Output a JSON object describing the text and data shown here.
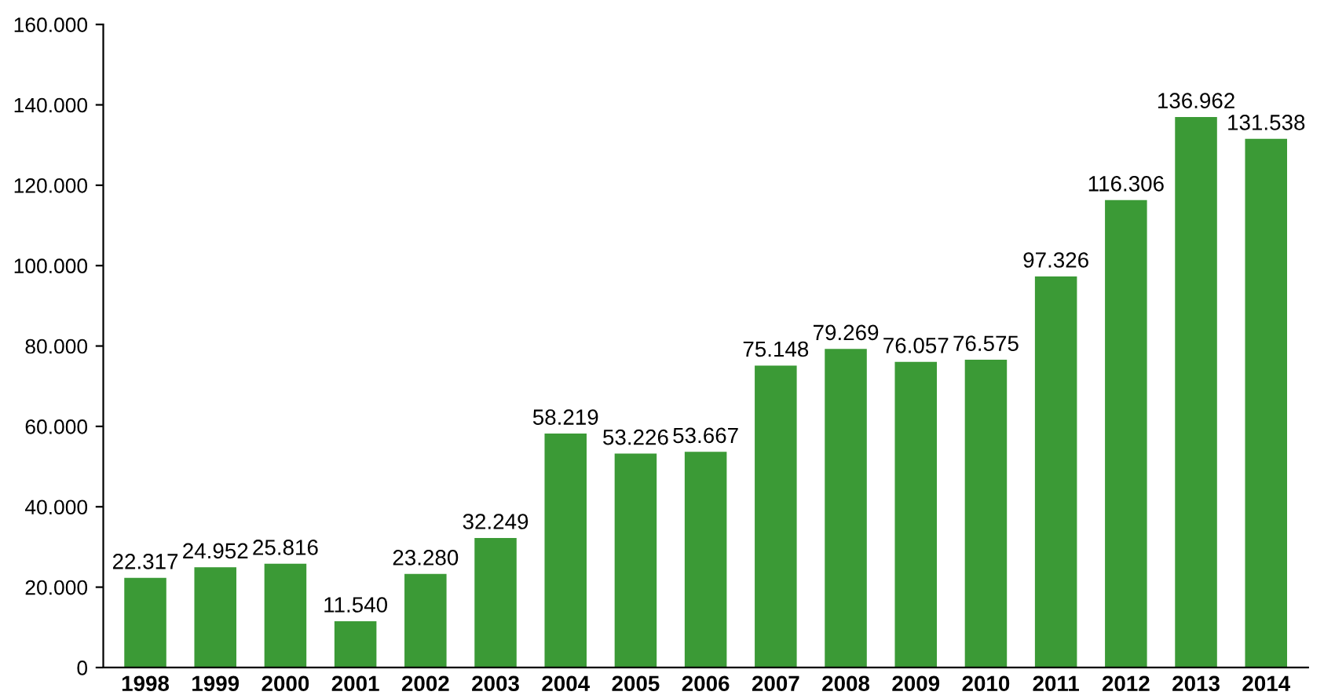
{
  "chart_data": {
    "type": "bar",
    "categories": [
      "1998",
      "1999",
      "2000",
      "2001",
      "2002",
      "2003",
      "2004",
      "2005",
      "2006",
      "2007",
      "2008",
      "2009",
      "2010",
      "2011",
      "2012",
      "2013",
      "2014"
    ],
    "values": [
      22317,
      24952,
      25816,
      11540,
      23280,
      32249,
      58219,
      53226,
      53667,
      75148,
      79269,
      76057,
      76575,
      97326,
      116306,
      136962,
      131538
    ],
    "value_labels": [
      "22.317",
      "24.952",
      "25.816",
      "11.540",
      "23.280",
      "32.249",
      "58.219",
      "53.226",
      "53.667",
      "75.148",
      "79.269",
      "76.057",
      "76.575",
      "97.326",
      "116.306",
      "136.962",
      "131.538"
    ],
    "color": "#3b9a36",
    "ylim": [
      0,
      160000
    ],
    "yticks": [
      0,
      {
        "value": 20000,
        "label": "20.000"
      },
      {
        "value": 40000,
        "label": "40.000"
      },
      {
        "value": 60000,
        "label": "60.000"
      },
      {
        "value": 80000,
        "label": "80.000"
      },
      {
        "value": 100000,
        "label": "100.000"
      },
      {
        "value": 120000,
        "label": "120.000"
      },
      {
        "value": 140000,
        "label": "140.000"
      },
      {
        "value": 160000,
        "label": "160.000"
      }
    ],
    "grid": false,
    "legend": false
  }
}
